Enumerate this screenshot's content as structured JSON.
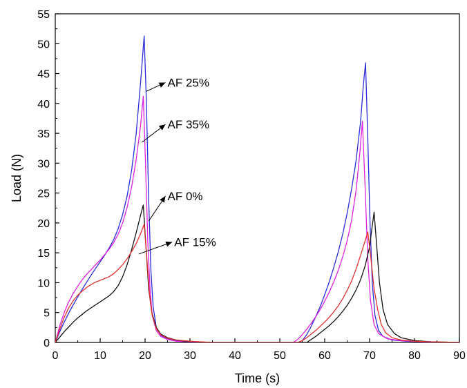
{
  "chart_data": {
    "type": "line",
    "title": "",
    "xlabel": "Time (s)",
    "ylabel": "Load (N)",
    "xlim": [
      0,
      90
    ],
    "ylim": [
      0,
      55
    ],
    "xticks": [
      0,
      10,
      20,
      30,
      40,
      50,
      60,
      70,
      80,
      90
    ],
    "yticks": [
      0,
      5,
      10,
      15,
      20,
      25,
      30,
      35,
      40,
      45,
      50,
      55
    ],
    "grid": false,
    "legend": "none",
    "series": [
      {
        "name": "AF 25%",
        "color": "#2b2bdc",
        "x": [
          0,
          1,
          2,
          3,
          4,
          5,
          6,
          7,
          8,
          9,
          10,
          11,
          12,
          13,
          14,
          15,
          16,
          17,
          18,
          19,
          19.8,
          20.3,
          20.8,
          21.3,
          21.8,
          22.5,
          23.5,
          25,
          27,
          30,
          35,
          54,
          55,
          56,
          57,
          58,
          59,
          60,
          61,
          62,
          63,
          64,
          65,
          66,
          67,
          68,
          68.6,
          69.1,
          69.6,
          70.1,
          70.6,
          71.2,
          72,
          73,
          75,
          78,
          82,
          90
        ],
        "y": [
          0,
          1.8,
          3.4,
          4.9,
          6.3,
          7.6,
          8.9,
          10.1,
          11.3,
          12.4,
          13.5,
          14.6,
          15.8,
          17.2,
          19,
          21.4,
          24.5,
          28.8,
          34.8,
          43.5,
          51.3,
          40,
          24,
          12,
          6,
          2.5,
          1.2,
          0.6,
          0.3,
          0.1,
          0,
          0,
          0.3,
          1.3,
          2.7,
          4.3,
          6,
          8,
          10.1,
          12.5,
          15.1,
          18.1,
          21.6,
          25.7,
          30.5,
          37,
          43,
          46.8,
          34,
          20,
          10,
          4.5,
          2,
          1,
          0.4,
          0.2,
          0.1,
          0
        ]
      },
      {
        "name": "AF 35%",
        "color": "#e020e0",
        "x": [
          0,
          1,
          2,
          3,
          4,
          5,
          6,
          7,
          8,
          9,
          10,
          11,
          12,
          13,
          14,
          15,
          16,
          17,
          18,
          19,
          19.6,
          20.1,
          20.6,
          21.1,
          21.6,
          22.5,
          23.5,
          25,
          27,
          30,
          35,
          53,
          54,
          55,
          56,
          57,
          58,
          59,
          60,
          61,
          62,
          63,
          64,
          65,
          66,
          67,
          67.8,
          68.4,
          69,
          69.6,
          70.2,
          71,
          72,
          74,
          77,
          82,
          90
        ],
        "y": [
          0,
          2.8,
          5,
          6.8,
          8.2,
          9.4,
          10.5,
          11.4,
          12.2,
          13,
          13.8,
          14.7,
          15.6,
          16.7,
          18.1,
          20,
          22.6,
          26,
          30.5,
          36.3,
          41.2,
          30,
          17,
          9,
          4.5,
          2,
          1,
          0.5,
          0.2,
          0.1,
          0,
          0,
          0.5,
          1.3,
          2.2,
          3.2,
          4.3,
          5.5,
          6.9,
          8.4,
          10.1,
          12,
          14.3,
          17,
          20.5,
          25.5,
          31.5,
          37,
          26,
          14,
          7,
          3,
          1.5,
          0.6,
          0.3,
          0.1,
          0
        ]
      },
      {
        "name": "AF 0%",
        "color": "#111111",
        "x": [
          0,
          1,
          2,
          3,
          4,
          5,
          6,
          7,
          8,
          9,
          10,
          11,
          12,
          13,
          14,
          15,
          16,
          17,
          18,
          19,
          19.6,
          20.2,
          20.8,
          21.5,
          22.5,
          23.5,
          25,
          27,
          29,
          32,
          35,
          56,
          57,
          58,
          59,
          60,
          61,
          62,
          63,
          64,
          65,
          66,
          67,
          68,
          69,
          70,
          70.5,
          71,
          71.6,
          72.2,
          73,
          74,
          75.5,
          77,
          80,
          84,
          90
        ],
        "y": [
          0,
          0.9,
          1.8,
          2.6,
          3.4,
          4.1,
          4.7,
          5.3,
          5.8,
          6.3,
          6.8,
          7.3,
          7.8,
          8.5,
          9.5,
          11,
          13,
          15.5,
          18.3,
          21.3,
          23,
          16,
          9,
          5,
          2.5,
          1.4,
          0.8,
          0.4,
          0.2,
          0.1,
          0,
          0,
          0.5,
          1,
          1.6,
          2.2,
          2.8,
          3.5,
          4.3,
          5.2,
          6.2,
          7.4,
          8.8,
          10.5,
          12.8,
          16,
          19,
          21.8,
          16,
          10,
          5.5,
          3,
          1.5,
          0.8,
          0.3,
          0.1,
          0
        ]
      },
      {
        "name": "AF 15%",
        "color": "#e03030",
        "x": [
          0,
          1,
          2,
          3,
          4,
          5,
          6,
          7,
          8,
          9,
          10,
          11,
          12,
          13,
          14,
          15,
          16,
          17,
          18,
          19,
          19.8,
          20.4,
          21,
          21.6,
          22.5,
          23.5,
          25,
          27,
          30,
          35,
          54,
          55,
          56,
          57,
          58,
          59,
          60,
          61,
          62,
          63,
          64,
          65,
          66,
          67,
          68,
          69,
          69.6,
          70.3,
          71,
          71.8,
          72.6,
          73.6,
          75,
          77,
          80,
          84,
          90
        ],
        "y": [
          0,
          2.2,
          4.2,
          5.8,
          7,
          7.9,
          8.6,
          9.2,
          9.7,
          10.1,
          10.4,
          10.7,
          11,
          11.5,
          12.2,
          13,
          14,
          15.2,
          16.5,
          18.2,
          19.8,
          14,
          8,
          4.5,
          2.3,
          1.3,
          0.7,
          0.4,
          0.2,
          0,
          0,
          0.3,
          0.8,
          1.4,
          2,
          2.7,
          3.4,
          4.2,
          5.1,
          6.1,
          7.3,
          8.7,
          10.3,
          12.3,
          14.6,
          17,
          18.5,
          14,
          9,
          5.5,
          3,
          1.6,
          0.8,
          0.4,
          0.2,
          0.1,
          0
        ]
      }
    ],
    "annotations": [
      {
        "text": "AF 25%",
        "x": 25,
        "y": 43.5,
        "point_x": 20.2,
        "point_y": 42
      },
      {
        "text": "AF 35%",
        "x": 25,
        "y": 36.5,
        "point_x": 19.3,
        "point_y": 33.5
      },
      {
        "text": "AF 0%",
        "x": 25,
        "y": 24.5,
        "point_x": 20.8,
        "point_y": 20.3
      },
      {
        "text": "AF 15%",
        "x": 26.5,
        "y": 16.8,
        "point_x": 18.6,
        "point_y": 14.8
      }
    ]
  }
}
